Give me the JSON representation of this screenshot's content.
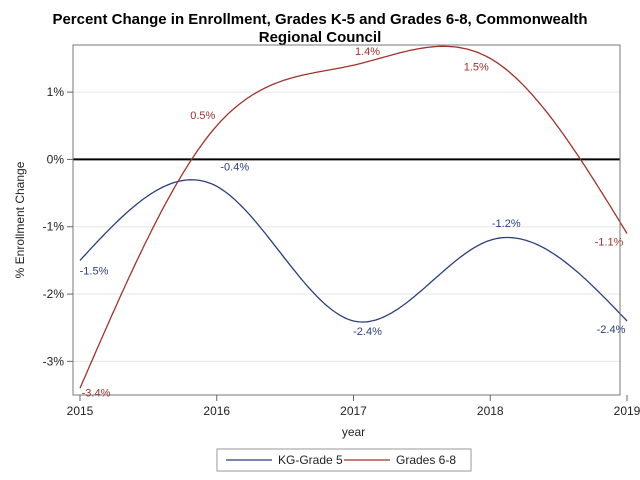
{
  "chart_data": {
    "type": "line",
    "title": "Percent Change in Enrollment, Grades K-5 and Grades 6-8, Commonwealth Regional Council",
    "xlabel": "year",
    "ylabel": "% Enrollment Change",
    "x": [
      2015,
      2016,
      2017,
      2018,
      2019
    ],
    "xlim": [
      2015,
      2019
    ],
    "ylim": [
      -3.5,
      1.7
    ],
    "x_ticks": [
      2015,
      2016,
      2017,
      2018,
      2019
    ],
    "y_ticks": [
      -3,
      -2,
      -1,
      0,
      1
    ],
    "y_tick_labels": [
      "-3%",
      "-2%",
      "-1%",
      "0%",
      "1%"
    ],
    "reference_line": 0,
    "grid": true,
    "legend_position": "bottom",
    "series": [
      {
        "name": "KG-Grade 5",
        "color": "#2a3f7f",
        "values": [
          -1.5,
          -0.4,
          -2.4,
          -1.2,
          -2.4
        ],
        "data_labels": [
          "-1.5%",
          "-0.4%",
          "-2.4%",
          "-1.2%",
          "-2.4%"
        ]
      },
      {
        "name": "Grades 6-8",
        "color": "#a0322d",
        "values": [
          -3.4,
          0.5,
          1.4,
          1.5,
          -1.1
        ],
        "data_labels": [
          "-3.4%",
          "0.5%",
          "1.4%",
          "1.5%",
          "-1.1%"
        ]
      }
    ]
  }
}
